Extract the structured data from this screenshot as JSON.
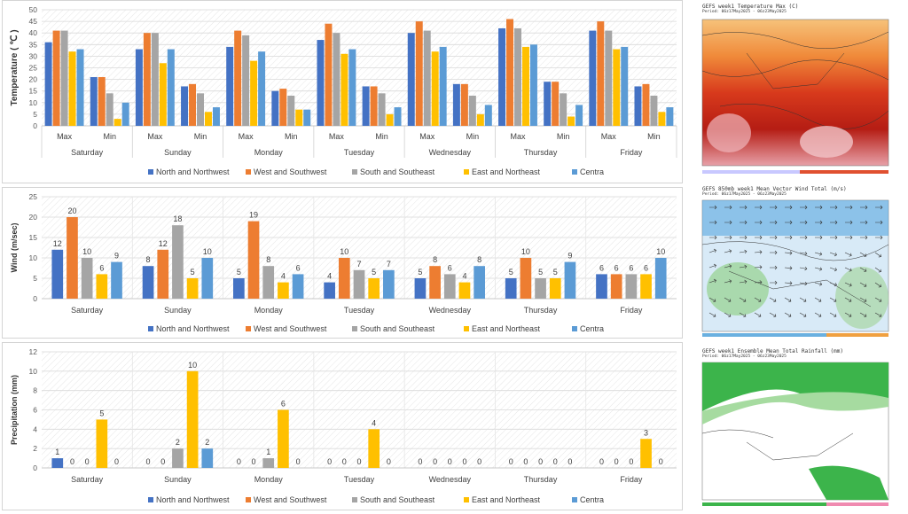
{
  "legend": [
    "North and Northwest",
    "West and Southwest",
    "South and Southeast",
    "East and Northeast",
    "Centra"
  ],
  "colors": [
    "#4472c4",
    "#ed7d31",
    "#a5a5a5",
    "#ffc000",
    "#5b9bd5"
  ],
  "days": [
    "Saturday",
    "Sunday",
    "Monday",
    "Tuesday",
    "Wednesday",
    "Thursday",
    "Friday"
  ],
  "chart_data": [
    {
      "type": "bar",
      "ylabel": "Temperature ( ℃ )",
      "ylim": [
        0,
        50
      ],
      "yticks": [
        0,
        5,
        10,
        15,
        20,
        25,
        30,
        35,
        40,
        45,
        50
      ],
      "grid": true,
      "legend_position": "bottom",
      "categories": [
        "Max",
        "Min",
        "Max",
        "Min",
        "Max",
        "Min",
        "Max",
        "Min",
        "Max",
        "Min",
        "Max",
        "Min",
        "Max",
        "Min"
      ],
      "groups": [
        "Saturday",
        "Sunday",
        "Monday",
        "Tuesday",
        "Wednesday",
        "Thursday",
        "Friday"
      ],
      "series": [
        {
          "name": "North and Northwest",
          "values": [
            36,
            21,
            33,
            17,
            34,
            15,
            37,
            17,
            40,
            18,
            42,
            19,
            41,
            17
          ]
        },
        {
          "name": "West and Southwest",
          "values": [
            41,
            21,
            40,
            18,
            41,
            16,
            44,
            17,
            45,
            18,
            46,
            19,
            45,
            18
          ]
        },
        {
          "name": "South and Southeast",
          "values": [
            41,
            14,
            40,
            14,
            39,
            13,
            40,
            14,
            41,
            13,
            42,
            14,
            41,
            13
          ]
        },
        {
          "name": "East and Northeast",
          "values": [
            32,
            3,
            27,
            6,
            28,
            7,
            31,
            5,
            32,
            5,
            34,
            4,
            33,
            6
          ]
        },
        {
          "name": "Centra",
          "values": [
            33,
            10,
            33,
            8,
            32,
            7,
            33,
            8,
            34,
            9,
            35,
            9,
            34,
            8
          ]
        }
      ]
    },
    {
      "type": "bar",
      "ylabel": "Wind (m/sec)",
      "ylim": [
        0,
        25
      ],
      "yticks": [
        0,
        5,
        10,
        15,
        20,
        25
      ],
      "grid": true,
      "legend_position": "bottom",
      "categories": [
        "Saturday",
        "Sunday",
        "Monday",
        "Tuesday",
        "Wednesday",
        "Thursday",
        "Friday"
      ],
      "series": [
        {
          "name": "North and Northwest",
          "values": [
            12,
            8,
            5,
            4,
            5,
            5,
            6
          ]
        },
        {
          "name": "West and Southwest",
          "values": [
            20,
            12,
            19,
            10,
            8,
            10,
            6
          ]
        },
        {
          "name": "South and Southeast",
          "values": [
            10,
            18,
            8,
            7,
            6,
            5,
            6
          ]
        },
        {
          "name": "East and Northeast",
          "values": [
            6,
            5,
            4,
            5,
            4,
            5,
            6
          ]
        },
        {
          "name": "Centra",
          "values": [
            9,
            10,
            6,
            7,
            8,
            9,
            10
          ]
        }
      ]
    },
    {
      "type": "bar",
      "ylabel": "Precipitation (mm)",
      "ylim": [
        0,
        12
      ],
      "yticks": [
        0,
        2,
        4,
        6,
        8,
        10,
        12
      ],
      "grid": true,
      "legend_position": "bottom",
      "categories": [
        "Saturday",
        "Sunday",
        "Monday",
        "Tuesday",
        "Wednesday",
        "Thursday",
        "Friday"
      ],
      "series": [
        {
          "name": "North and Northwest",
          "values": [
            1,
            0,
            0,
            0,
            0,
            0,
            0
          ]
        },
        {
          "name": "West and Southwest",
          "values": [
            0,
            0,
            0,
            0,
            0,
            0,
            0
          ]
        },
        {
          "name": "South and Southeast",
          "values": [
            0,
            2,
            1,
            0,
            0,
            0,
            0
          ]
        },
        {
          "name": "East and Northeast",
          "values": [
            5,
            10,
            6,
            4,
            0,
            0,
            3
          ]
        },
        {
          "name": "Centra",
          "values": [
            0,
            2,
            0,
            0,
            0,
            0,
            0
          ]
        }
      ]
    }
  ],
  "maps": [
    {
      "title": "GEFS week1 Temperature Max (C)",
      "period": "Period: 06z17May2025 - 06z23May2025"
    },
    {
      "title": "GEFS 850mb week1 Mean Vector Wind Total (m/s)",
      "period": "Period: 06z17May2025 - 06z23May2025"
    },
    {
      "title": "GEFS week1 Ensemble Mean Total Rainfall (mm)",
      "period": "Period: 06z17May2025 - 06z23May2025"
    }
  ]
}
